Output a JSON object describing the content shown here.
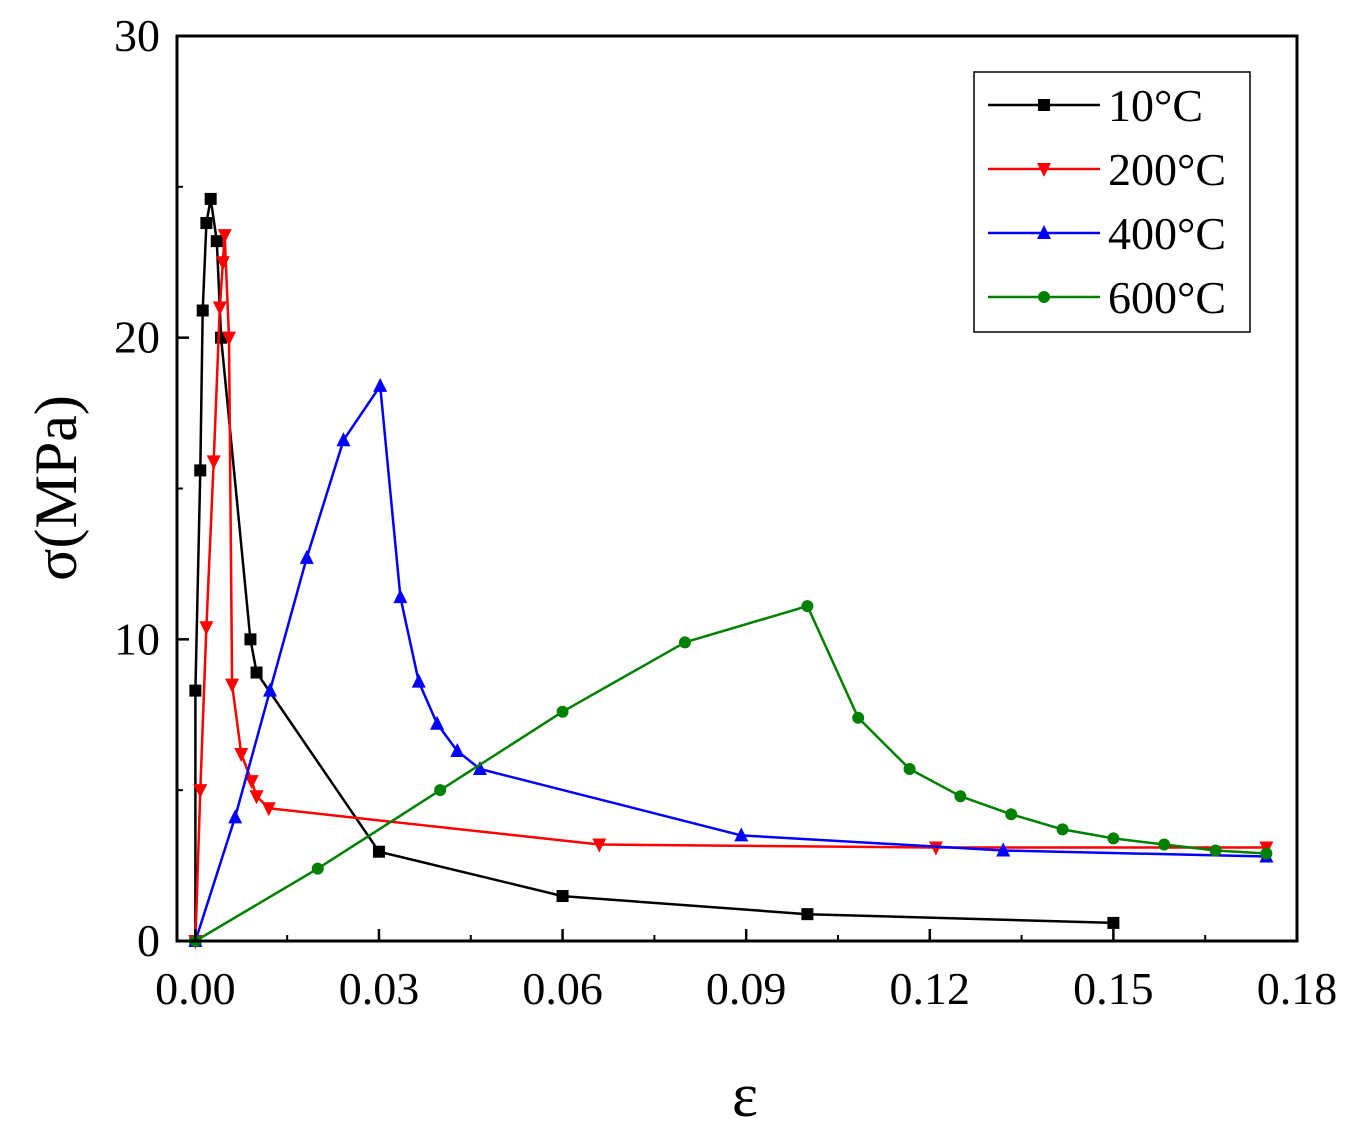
{
  "chart_data": {
    "type": "line",
    "title": "",
    "xlabel": "ε",
    "ylabel": "σ(MPa)",
    "xlim": [
      -0.003,
      0.18
    ],
    "ylim": [
      0,
      30
    ],
    "xticks": [
      "0.00",
      "0.03",
      "0.06",
      "0.09",
      "0.12",
      "0.15",
      "0.18"
    ],
    "xtick_values": [
      0,
      0.03,
      0.06,
      0.09,
      0.12,
      0.15,
      0.18
    ],
    "yticks": [
      "0",
      "10",
      "20",
      "30"
    ],
    "ytick_values": [
      0,
      10,
      20,
      30
    ],
    "grid": false,
    "legend_position": "top-right",
    "series": [
      {
        "name": "10°C",
        "color": "#000000",
        "marker": "square",
        "points": [
          [
            0,
            0
          ],
          [
            0,
            8.3
          ],
          [
            0.0008,
            15.6
          ],
          [
            0.0012,
            20.9
          ],
          [
            0.0018,
            23.8
          ],
          [
            0.0025,
            24.6
          ],
          [
            0.0035,
            23.2
          ],
          [
            0.0042,
            20.0
          ],
          [
            0.009,
            10.0
          ],
          [
            0.01,
            8.9
          ],
          [
            0.03,
            2.96
          ],
          [
            0.06,
            1.49
          ],
          [
            0.1,
            0.89
          ],
          [
            0.15,
            0.6
          ]
        ]
      },
      {
        "name": "200°C",
        "color": "#ff0000",
        "marker": "triangle-down",
        "points": [
          [
            0,
            0
          ],
          [
            0.0008,
            5.0
          ],
          [
            0.0018,
            10.4
          ],
          [
            0.003,
            15.9
          ],
          [
            0.004,
            21.0
          ],
          [
            0.0045,
            22.5
          ],
          [
            0.0048,
            23.4
          ],
          [
            0.0055,
            20.0
          ],
          [
            0.006,
            8.5
          ],
          [
            0.0075,
            6.2
          ],
          [
            0.0092,
            5.3
          ],
          [
            0.01,
            4.8
          ],
          [
            0.012,
            4.4
          ],
          [
            0.066,
            3.2
          ],
          [
            0.121,
            3.1
          ],
          [
            0.175,
            3.1
          ]
        ]
      },
      {
        "name": "400°C",
        "color": "#0000ff",
        "marker": "triangle-up",
        "points": [
          [
            0,
            0
          ],
          [
            0.0065,
            4.1
          ],
          [
            0.0122,
            8.3
          ],
          [
            0.0182,
            12.7
          ],
          [
            0.0242,
            16.6
          ],
          [
            0.0302,
            18.4
          ],
          [
            0.0335,
            11.4
          ],
          [
            0.0365,
            8.6
          ],
          [
            0.0395,
            7.2
          ],
          [
            0.0428,
            6.3
          ],
          [
            0.0465,
            5.7
          ],
          [
            0.0892,
            3.5
          ],
          [
            0.132,
            3.0
          ],
          [
            0.175,
            2.8
          ]
        ]
      },
      {
        "name": "600°C",
        "color": "#008000",
        "marker": "circle",
        "points": [
          [
            0,
            0
          ],
          [
            0.02,
            2.4
          ],
          [
            0.04,
            5.0
          ],
          [
            0.06,
            7.6
          ],
          [
            0.08,
            9.9
          ],
          [
            0.1,
            11.1
          ],
          [
            0.1083,
            7.4
          ],
          [
            0.1167,
            5.7
          ],
          [
            0.125,
            4.8
          ],
          [
            0.1333,
            4.2
          ],
          [
            0.1417,
            3.7
          ],
          [
            0.15,
            3.4
          ],
          [
            0.1583,
            3.2
          ],
          [
            0.1667,
            3.0
          ],
          [
            0.175,
            2.9
          ]
        ]
      }
    ]
  }
}
